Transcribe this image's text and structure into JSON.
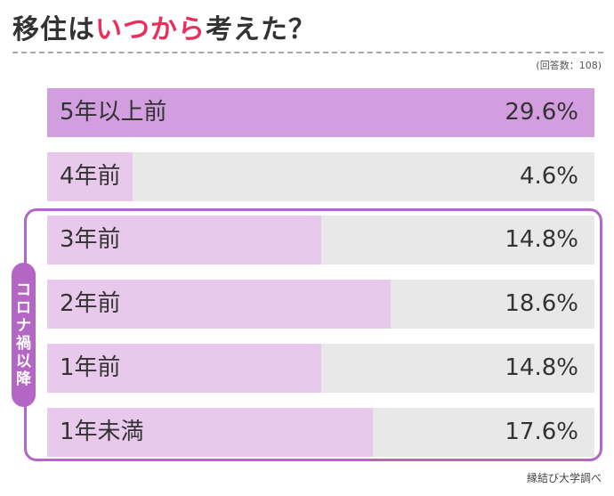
{
  "title": {
    "part1": "移住は",
    "highlight": "いつから",
    "part2": "考えた？"
  },
  "respondents": "(回答数：108)",
  "source": "縁結び大学調べ",
  "corona_label": "コロナ禍以降",
  "colors": {
    "first": "#d29edf",
    "other": "#e8c9ec",
    "track": "#e8e8e8",
    "accent": "#b466c4",
    "title_highlight": "#e8305f"
  },
  "chart_data": {
    "type": "bar",
    "orientation": "horizontal",
    "categories": [
      "5年以上前",
      "4年前",
      "3年前",
      "2年前",
      "1年前",
      "1年未満"
    ],
    "values": [
      29.6,
      4.6,
      14.8,
      18.6,
      14.8,
      17.6
    ],
    "value_labels": [
      "29.6%",
      "4.6%",
      "14.8%",
      "18.6%",
      "14.8%",
      "17.6%"
    ],
    "xlim": [
      0,
      29.6
    ],
    "grouped_categories": [
      "3年前",
      "2年前",
      "1年前",
      "1年未満"
    ]
  }
}
